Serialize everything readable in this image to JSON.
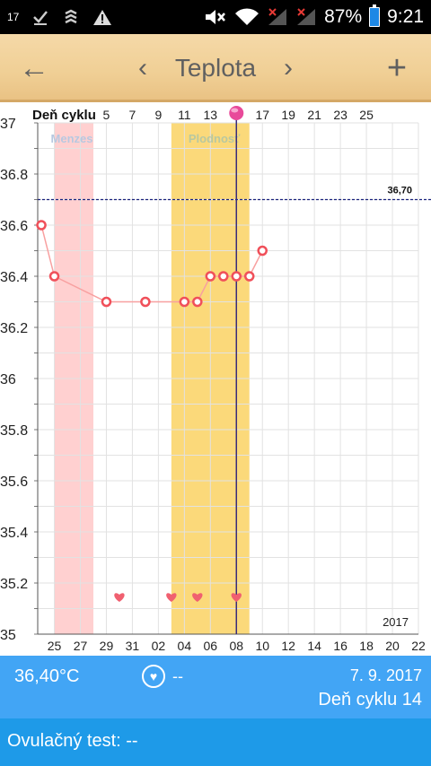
{
  "status_bar": {
    "notif_badge": "17",
    "battery_percent": "87%",
    "time": "9:21",
    "icons": [
      "check-icon",
      "shield-icon",
      "warning-icon",
      "mute-icon",
      "wifi-icon",
      "signal-icon",
      "signal-icon",
      "battery-icon"
    ]
  },
  "toolbar": {
    "back_icon": "←",
    "prev_icon": "‹",
    "title": "Teplota",
    "next_icon": "›",
    "add_icon": "+"
  },
  "chart_data": {
    "type": "line",
    "top_axis_label": "Deň cyklu",
    "top_ticks": [
      {
        "label": "5",
        "col": 2.5
      },
      {
        "label": "7",
        "col": 3.5
      },
      {
        "label": "9",
        "col": 4.5
      },
      {
        "label": "11",
        "col": 5.5
      },
      {
        "label": "13",
        "col": 6.5
      },
      {
        "label": "17",
        "col": 8.5
      },
      {
        "label": "19",
        "col": 9.5
      },
      {
        "label": "21",
        "col": 10.5
      },
      {
        "label": "23",
        "col": 11.5
      },
      {
        "label": "25",
        "col": 12.5
      }
    ],
    "current_day_col": 7.5,
    "bottom_ticks": [
      {
        "label": "25",
        "col": 0.5
      },
      {
        "label": "27",
        "col": 1.5
      },
      {
        "label": "29",
        "col": 2.5
      },
      {
        "label": "31",
        "col": 3.5
      },
      {
        "label": "02",
        "col": 4.5
      },
      {
        "label": "04",
        "col": 5.5
      },
      {
        "label": "06",
        "col": 6.5
      },
      {
        "label": "08",
        "col": 7.5
      },
      {
        "label": "10",
        "col": 8.5
      },
      {
        "label": "12",
        "col": 9.5
      },
      {
        "label": "14",
        "col": 10.5
      },
      {
        "label": "16",
        "col": 11.5
      },
      {
        "label": "18",
        "col": 12.5
      },
      {
        "label": "20",
        "col": 13.5
      },
      {
        "label": "22",
        "col": 14.5
      }
    ],
    "y_ticks": [
      "35",
      "35.2",
      "35.4",
      "35.6",
      "35.8",
      "36",
      "36.2",
      "36.4",
      "36.6",
      "36.8",
      "37"
    ],
    "ylim": [
      35,
      37
    ],
    "col_range": [
      -0.14,
      14.5
    ],
    "menses": {
      "label": "Menzes",
      "start_col": 0.5,
      "end_col": 2.0
    },
    "fertile": {
      "label": "Plodnosť",
      "start_col": 5.0,
      "end_col": 8.0
    },
    "threshold": {
      "value": 36.7,
      "label": "36,70"
    },
    "series": [
      {
        "points": [
          {
            "col": 0.0,
            "y": 36.6
          },
          {
            "col": 0.5,
            "y": 36.4
          },
          {
            "col": 2.5,
            "y": 36.3
          },
          {
            "col": 4.0,
            "y": 36.3
          },
          {
            "col": 5.5,
            "y": 36.3
          },
          {
            "col": 6.0,
            "y": 36.3
          },
          {
            "col": 6.5,
            "y": 36.4
          },
          {
            "col": 7.0,
            "y": 36.4
          },
          {
            "col": 7.5,
            "y": 36.4
          },
          {
            "col": 8.0,
            "y": 36.4
          },
          {
            "col": 8.5,
            "y": 36.5
          }
        ]
      }
    ],
    "hearts": [
      3.0,
      5.0,
      6.0,
      7.5
    ],
    "year_label": "2017",
    "colors": {
      "line": "#f8a0a0",
      "marker": "#f0505a",
      "menses": "#ffd0d0",
      "fertile": "#fbd97a",
      "threshold": "#1a237e",
      "current_day": "#3a2c7a",
      "heart": "#f06070"
    }
  },
  "info_bar": {
    "temperature": "36,40°C",
    "heart_icon": "♥",
    "ovulation_dash": "--",
    "date": "7. 9. 2017",
    "cycle_day": "Deň cyklu 14"
  },
  "ovulation_bar": {
    "label": "Ovulačný test: --"
  }
}
